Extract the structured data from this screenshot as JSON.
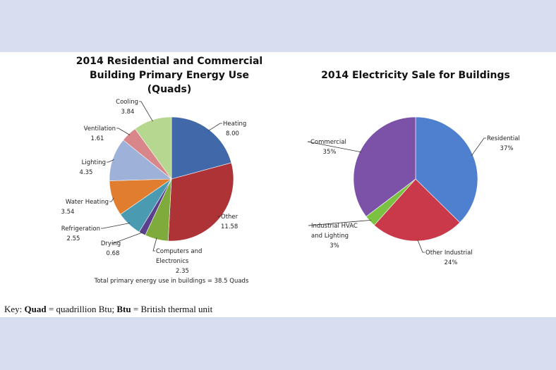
{
  "chart_data": [
    {
      "type": "pie",
      "title_line1": "2014 Residential and Commercial",
      "title_line2": "Building Primary Energy Use (Quads)",
      "footnote": "Total primary energy use in buildings = 38.5 Quads",
      "slices": [
        {
          "label": "Heating",
          "value": 8.0,
          "value_text": "8.00",
          "color": "#4169aa"
        },
        {
          "label": "Other",
          "value": 11.58,
          "value_text": "11.58",
          "color": "#ad3336"
        },
        {
          "label": "Computers and Electronics",
          "label_lines": [
            "Computers and",
            "Electronics"
          ],
          "value": 2.35,
          "value_text": "2.35",
          "color": "#7fab3c"
        },
        {
          "label": "Drying",
          "value": 0.68,
          "value_text": "0.68",
          "color": "#5b3e8c"
        },
        {
          "label": "Refrigeration",
          "value": 2.55,
          "value_text": "2.55",
          "color": "#4a9bb2"
        },
        {
          "label": "Water Heating",
          "value": 3.54,
          "value_text": "3.54",
          "color": "#e07d2e"
        },
        {
          "label": "Lighting",
          "value": 4.35,
          "value_text": "4.35",
          "color": "#9eb1d9"
        },
        {
          "label": "Ventilation",
          "value": 1.61,
          "value_text": "1.61",
          "color": "#d9868a"
        },
        {
          "label": "Cooling",
          "value": 3.84,
          "value_text": "3.84",
          "color": "#b6d78f"
        }
      ]
    },
    {
      "type": "pie",
      "title": "2014 Electricity Sale for Buildings",
      "slices": [
        {
          "label": "Residential",
          "value": 37,
          "value_text": "37%",
          "color": "#4f7fcf"
        },
        {
          "label": "Other Industrial",
          "value": 24,
          "value_text": "24%",
          "color": "#c9394a"
        },
        {
          "label": "Industrial HVAC and Lighting",
          "label_lines": [
            "Industrial HVAC",
            "and Lighting"
          ],
          "value": 3,
          "value_text": "3%",
          "color": "#7cc242"
        },
        {
          "label": "Commercial",
          "value": 35,
          "value_text": "35%",
          "color": "#7b52a8"
        }
      ]
    }
  ],
  "key": {
    "prefix": "Key: ",
    "quad_term": "Quad",
    "quad_def": " = quadrillion Btu; ",
    "btu_term": "Btu",
    "btu_def": " = British thermal unit"
  }
}
